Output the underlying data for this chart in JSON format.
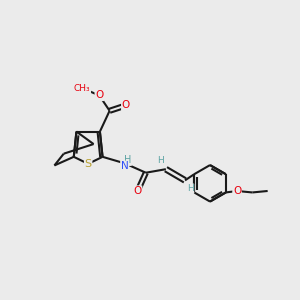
{
  "bg_color": "#ebebeb",
  "bond_color": "#1a1a1a",
  "bond_width": 1.5,
  "atom_colors": {
    "O": "#e8000d",
    "N": "#3050f8",
    "S": "#b9a130",
    "H": "#5ca3a3",
    "C": "#1a1a1a"
  },
  "figsize": [
    3.0,
    3.0
  ],
  "dpi": 100
}
